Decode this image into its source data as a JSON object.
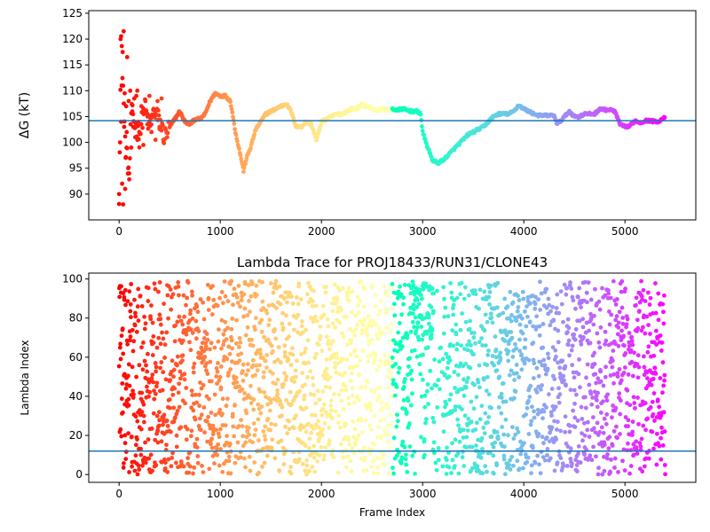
{
  "chart_data": [
    {
      "type": "scatter",
      "title": "",
      "xlabel": "",
      "ylabel": "ΔG (kT)",
      "xlim": [
        -300,
        5700
      ],
      "ylim": [
        85,
        125.5
      ],
      "xticks": [
        0,
        1000,
        2000,
        3000,
        4000,
        5000
      ],
      "yticks": [
        90,
        95,
        100,
        105,
        110,
        115,
        120,
        125
      ],
      "hline": 104.2,
      "hline_color": "#1f77b4",
      "colormap": "rainbow (red at frame 0 → violet at last frame)",
      "grid": false,
      "x_max": 5400,
      "trace": [
        [
          0,
          90
        ],
        [
          20,
          120
        ],
        [
          40,
          111
        ],
        [
          60,
          100
        ],
        [
          80,
          97
        ],
        [
          100,
          93
        ],
        [
          120,
          106
        ],
        [
          150,
          104
        ],
        [
          200,
          101
        ],
        [
          250,
          107
        ],
        [
          300,
          103
        ],
        [
          350,
          106
        ],
        [
          400,
          104
        ],
        [
          450,
          101
        ],
        [
          500,
          103
        ],
        [
          550,
          104.5
        ],
        [
          600,
          106
        ],
        [
          650,
          104
        ],
        [
          700,
          103.5
        ],
        [
          750,
          104.5
        ],
        [
          800,
          104.5
        ],
        [
          850,
          105.5
        ],
        [
          900,
          108
        ],
        [
          950,
          109.5
        ],
        [
          1000,
          109
        ],
        [
          1050,
          109
        ],
        [
          1100,
          108
        ],
        [
          1150,
          102
        ],
        [
          1200,
          97.5
        ],
        [
          1230,
          94.5
        ],
        [
          1260,
          97
        ],
        [
          1300,
          99
        ],
        [
          1350,
          102.5
        ],
        [
          1400,
          104
        ],
        [
          1450,
          105.5
        ],
        [
          1500,
          106
        ],
        [
          1550,
          106.5
        ],
        [
          1600,
          107
        ],
        [
          1650,
          107.5
        ],
        [
          1700,
          106
        ],
        [
          1750,
          103
        ],
        [
          1800,
          103
        ],
        [
          1850,
          104
        ],
        [
          1900,
          103.5
        ],
        [
          1950,
          100.5
        ],
        [
          1980,
          102.5
        ],
        [
          2000,
          104
        ],
        [
          2050,
          104.5
        ],
        [
          2100,
          105
        ],
        [
          2150,
          105.5
        ],
        [
          2200,
          105.5
        ],
        [
          2250,
          106
        ],
        [
          2300,
          106.5
        ],
        [
          2350,
          106.5
        ],
        [
          2400,
          107.3
        ],
        [
          2450,
          107
        ],
        [
          2500,
          106.5
        ],
        [
          2550,
          106.2
        ],
        [
          2600,
          106.5
        ],
        [
          2650,
          106.2
        ],
        [
          2700,
          106.5
        ],
        [
          2750,
          106.2
        ],
        [
          2800,
          106.5
        ],
        [
          2850,
          106.2
        ],
        [
          2900,
          106
        ],
        [
          2950,
          106
        ],
        [
          2980,
          105.5
        ],
        [
          3000,
          102
        ],
        [
          3050,
          99
        ],
        [
          3100,
          96.5
        ],
        [
          3150,
          96
        ],
        [
          3200,
          96.5
        ],
        [
          3250,
          97.5
        ],
        [
          3300,
          98.5
        ],
        [
          3350,
          99.5
        ],
        [
          3400,
          100.5
        ],
        [
          3450,
          101.5
        ],
        [
          3500,
          102
        ],
        [
          3550,
          102.5
        ],
        [
          3600,
          103
        ],
        [
          3650,
          104
        ],
        [
          3700,
          105
        ],
        [
          3750,
          105.5
        ],
        [
          3800,
          105.5
        ],
        [
          3850,
          105.5
        ],
        [
          3900,
          106
        ],
        [
          3950,
          107.2
        ],
        [
          4000,
          106.5
        ],
        [
          4050,
          106
        ],
        [
          4100,
          105.5
        ],
        [
          4150,
          105.2
        ],
        [
          4200,
          105.2
        ],
        [
          4250,
          105.2
        ],
        [
          4300,
          105.2
        ],
        [
          4330,
          103.5
        ],
        [
          4380,
          104.5
        ],
        [
          4450,
          106
        ],
        [
          4500,
          105
        ],
        [
          4550,
          105
        ],
        [
          4600,
          105.5
        ],
        [
          4650,
          105.5
        ],
        [
          4700,
          105.5
        ],
        [
          4750,
          106.5
        ],
        [
          4800,
          106.3
        ],
        [
          4850,
          106.3
        ],
        [
          4900,
          106
        ],
        [
          4950,
          103.5
        ],
        [
          5000,
          103
        ],
        [
          5050,
          103.2
        ],
        [
          5100,
          104.2
        ],
        [
          5150,
          103.8
        ],
        [
          5200,
          104.2
        ],
        [
          5250,
          104.2
        ],
        [
          5300,
          104
        ],
        [
          5350,
          104.2
        ],
        [
          5380,
          104.8
        ],
        [
          5400,
          105
        ]
      ],
      "early_scatter": [
        [
          0,
          90
        ],
        [
          10,
          100
        ],
        [
          15,
          120
        ],
        [
          20,
          104
        ],
        [
          25,
          111
        ],
        [
          30,
          92
        ],
        [
          35,
          117.5
        ],
        [
          40,
          88
        ],
        [
          45,
          121.5
        ],
        [
          50,
          103
        ],
        [
          55,
          109.5
        ],
        [
          60,
          91
        ],
        [
          65,
          97
        ],
        [
          70,
          107
        ],
        [
          75,
          102
        ],
        [
          80,
          116.5
        ],
        [
          90,
          95
        ],
        [
          95,
          108
        ],
        [
          100,
          94
        ],
        [
          110,
          110
        ],
        [
          120,
          99
        ],
        [
          130,
          106
        ],
        [
          140,
          103
        ],
        [
          150,
          108.5
        ],
        [
          160,
          101
        ],
        [
          170,
          109
        ],
        [
          180,
          110
        ],
        [
          190,
          104
        ],
        [
          200,
          102
        ],
        [
          220,
          107
        ],
        [
          240,
          99.5
        ],
        [
          260,
          108
        ],
        [
          280,
          103.5
        ],
        [
          300,
          109
        ],
        [
          320,
          102
        ],
        [
          340,
          106.5
        ],
        [
          360,
          100.5
        ],
        [
          380,
          108
        ],
        [
          400,
          103
        ],
        [
          420,
          108.5
        ],
        [
          440,
          100
        ]
      ]
    },
    {
      "type": "scatter",
      "title": "Lambda Trace for PROJ18433/RUN31/CLONE43",
      "xlabel": "Frame Index",
      "ylabel": "Lambda Index",
      "xlim": [
        -300,
        5700
      ],
      "ylim": [
        -4,
        103
      ],
      "xticks": [
        0,
        1000,
        2000,
        3000,
        4000,
        5000
      ],
      "yticks": [
        0,
        20,
        40,
        60,
        80,
        100
      ],
      "hline": 12,
      "hline_color": "#1f77b4",
      "colormap": "rainbow (red at frame 0 → violet at last frame)",
      "grid": false,
      "x_max": 5400,
      "points": 5400,
      "values_min": 0,
      "values_max": 99,
      "dense_upper_band": [
        2900,
        3100
      ]
    }
  ]
}
